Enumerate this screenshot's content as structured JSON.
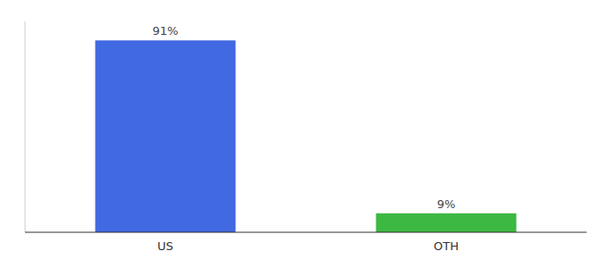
{
  "chart_data": {
    "type": "bar",
    "categories": [
      "US",
      "OTH"
    ],
    "values": [
      91,
      9
    ],
    "value_labels": [
      "91%",
      "9%"
    ],
    "colors": [
      "#4169E1",
      "#3CB843"
    ],
    "ylim": [
      0,
      100
    ],
    "data_labels": true,
    "tick_labels": "x",
    "grid": false
  }
}
